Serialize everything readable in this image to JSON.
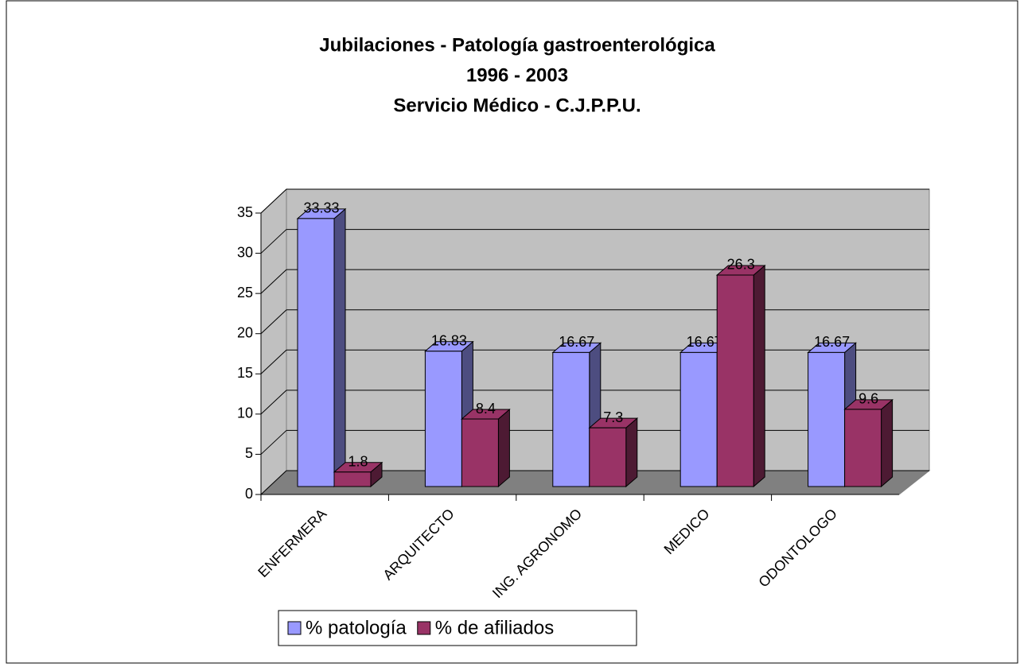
{
  "chart_data": {
    "type": "bar3d",
    "title": [
      "Jubilaciones - Patología gastroenterológica",
      "1996 - 2003",
      "Servicio Médico - C.J.P.P.U."
    ],
    "categories": [
      "ENFERMERA",
      "ARQUITECTO",
      "ING. AGRONOMO",
      "MEDICO",
      "ODONTOLOGO"
    ],
    "series": [
      {
        "name": "% patología",
        "color": "#9999ff",
        "values": [
          33.33,
          16.83,
          16.67,
          16.67,
          16.67
        ]
      },
      {
        "name": "% de afiliados",
        "color": "#993366",
        "values": [
          1.8,
          8.4,
          7.3,
          26.3,
          9.6
        ]
      }
    ],
    "ylim": [
      0,
      35
    ],
    "yticks": [
      0,
      5,
      10,
      15,
      20,
      25,
      30,
      35
    ],
    "grid": true,
    "legend": "bottom"
  }
}
